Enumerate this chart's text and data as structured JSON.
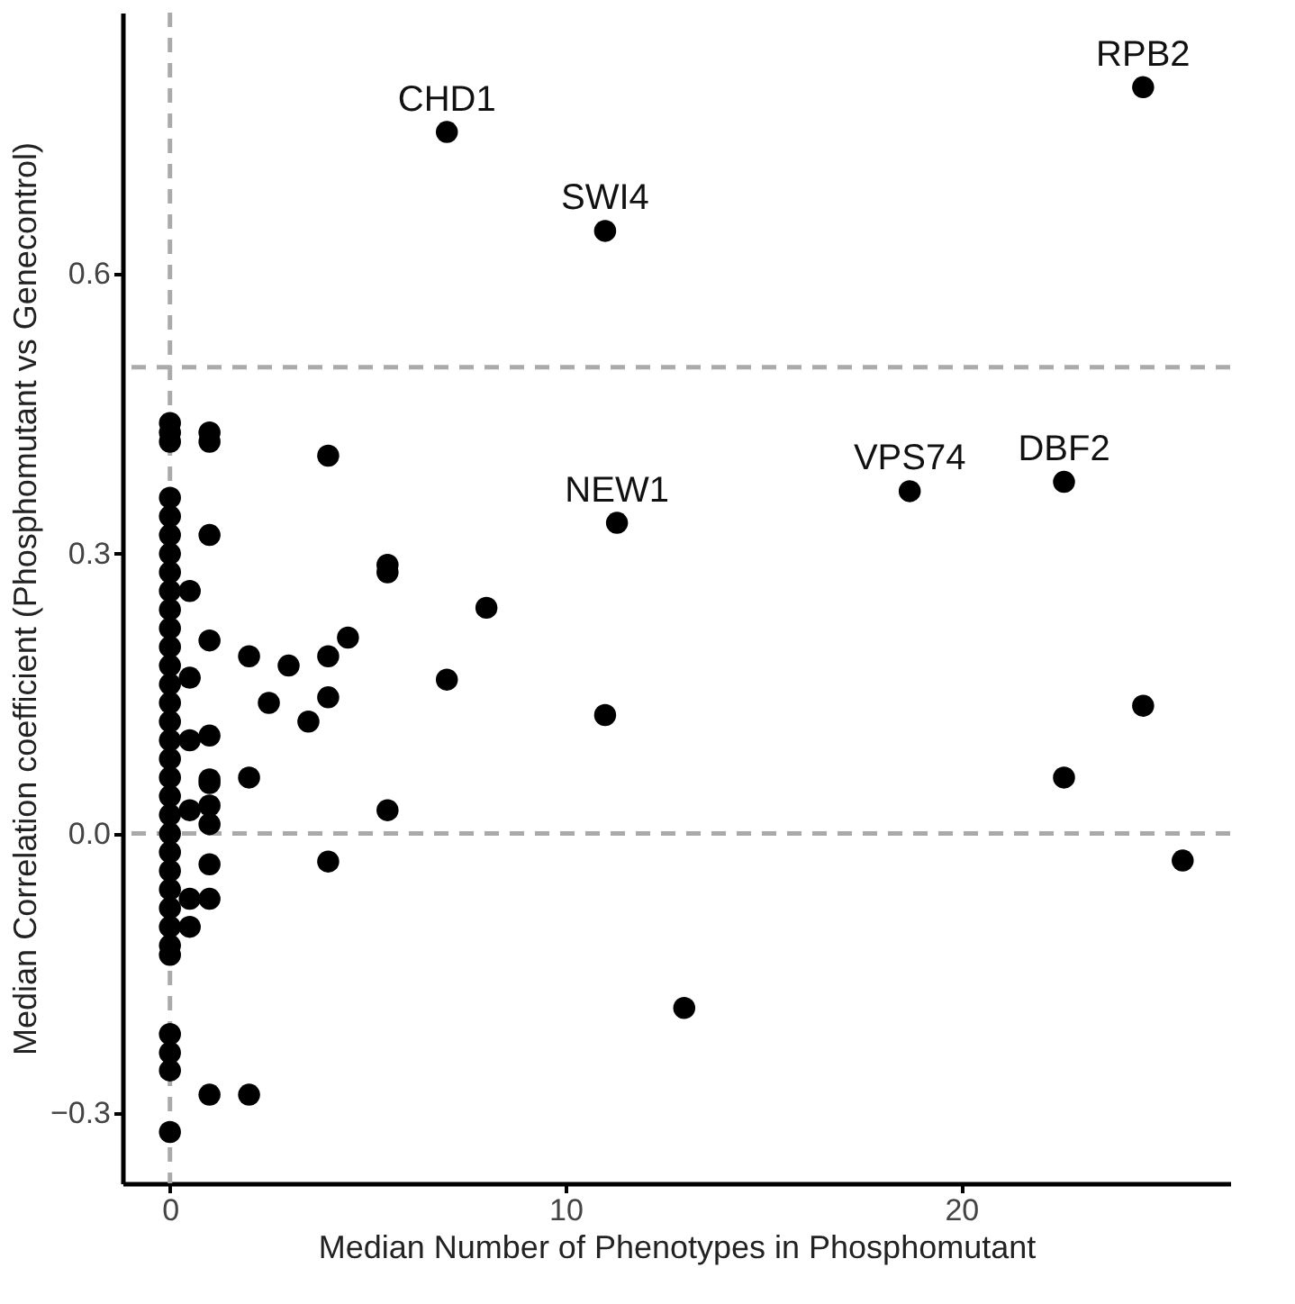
{
  "chart_data": {
    "type": "scatter",
    "xlabel": "Median Number of Phenotypes in Phosphomutant",
    "ylabel": "Median Correlation coefficient (Phosphomutant vs Genecontrol)",
    "xlim": [
      -1.2,
      26.8
    ],
    "ylim": [
      -0.375,
      0.88
    ],
    "xticks": [
      0,
      10,
      20
    ],
    "yticks": [
      -0.3,
      {
        "value": 0,
        "label": "0.0"
      },
      0.3,
      0.6
    ],
    "grid": false,
    "marker": "circle",
    "series": [
      {
        "color": "#000000",
        "x": [
          7,
          11,
          24.6,
          22.6,
          18.7,
          11.3,
          5.5,
          5.5,
          8,
          7,
          11,
          5.5,
          13,
          22.6,
          24.6,
          25.6,
          0,
          0,
          0,
          0,
          0,
          0,
          0,
          0,
          0,
          0,
          0,
          0,
          0,
          0,
          0,
          0,
          0,
          0,
          0,
          0,
          0,
          0,
          0,
          0,
          0,
          0,
          0,
          0,
          0,
          0,
          0,
          0,
          0,
          1,
          1,
          4,
          1,
          0.5,
          1,
          2,
          3,
          4,
          4.5,
          0.5,
          2.5,
          4,
          3.5,
          0.5,
          1,
          1,
          2,
          1,
          1,
          1,
          1,
          4,
          1,
          0.5,
          0.5,
          1,
          2,
          0.5
        ],
        "values": [
          0.752,
          0.646,
          0.8,
          0.377,
          0.367,
          0.333,
          0.288,
          0.28,
          0.242,
          0.165,
          0.127,
          0.025,
          -0.187,
          0.06,
          0.137,
          -0.029,
          0.44,
          0.43,
          0.42,
          0.36,
          0.34,
          0.32,
          0.3,
          0.28,
          0.26,
          0.24,
          0.22,
          0.2,
          0.18,
          0.16,
          0.14,
          0.12,
          0.1,
          0.08,
          0.06,
          0.04,
          0.02,
          0.0,
          -0.02,
          -0.04,
          -0.06,
          -0.08,
          -0.1,
          -0.12,
          -0.13,
          -0.215,
          -0.235,
          -0.254,
          -0.32,
          0.43,
          0.42,
          0.405,
          0.32,
          0.26,
          0.207,
          0.19,
          0.18,
          0.19,
          0.21,
          0.167,
          0.14,
          0.146,
          0.12,
          0.1,
          0.105,
          0.058,
          0.06,
          0.054,
          0.03,
          0.01,
          -0.033,
          -0.03,
          -0.07,
          -0.07,
          -0.1,
          -0.28,
          -0.28,
          0.025
        ]
      }
    ],
    "ref_lines": [
      {
        "axis": "x",
        "value": 0,
        "color": "#aaaaaa",
        "line_style": "dashed"
      },
      {
        "axis": "y",
        "value": 0,
        "color": "#aaaaaa",
        "line_style": "dashed"
      },
      {
        "axis": "y",
        "value": 0.5,
        "color": "#aaaaaa",
        "line_style": "dashed"
      }
    ],
    "annotations": [
      {
        "text": "CHD1",
        "x": 7,
        "y": 0.752
      },
      {
        "text": "SWI4",
        "x": 11,
        "y": 0.646
      },
      {
        "text": "RPB2",
        "x": 24.6,
        "y": 0.8
      },
      {
        "text": "DBF2",
        "x": 22.6,
        "y": 0.377
      },
      {
        "text": "VPS74",
        "x": 18.7,
        "y": 0.367
      },
      {
        "text": "NEW1",
        "x": 11.3,
        "y": 0.333
      }
    ]
  }
}
